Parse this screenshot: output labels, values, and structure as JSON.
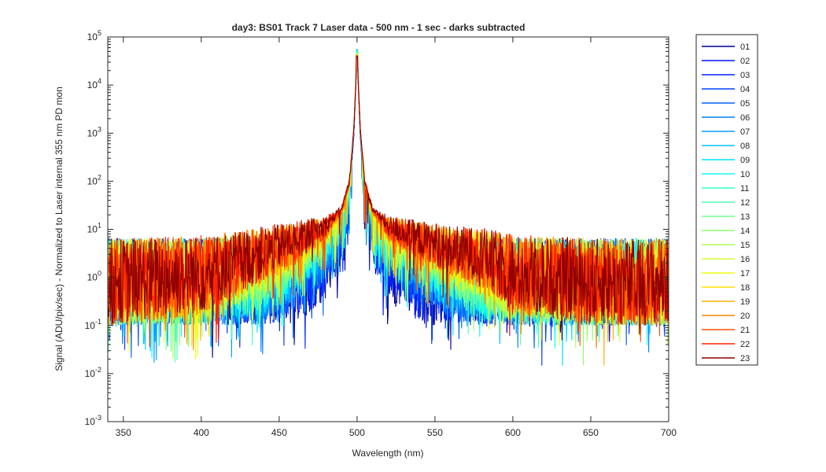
{
  "chart_data": {
    "type": "line",
    "title": "day3: BS01  Track 7 Laser data - 500 nm - 1 sec - darks subtracted",
    "xlabel": "Wavelength (nm)",
    "ylabel": "Signal (ADU/pix/sec) - Normalized to Laser internal 355 nm PD mon",
    "xlim": [
      340,
      700
    ],
    "ylim": [
      0.001,
      100000
    ],
    "yscale": "log",
    "grid": false,
    "legend_position": "outside-right",
    "x_ticks": [
      "350",
      "400",
      "450",
      "500",
      "550",
      "600",
      "650",
      "700"
    ],
    "y_tick_exponents": [
      "-3",
      "-2",
      "-1",
      "0",
      "1",
      "2",
      "3",
      "4",
      "5"
    ],
    "y_tick_base": "10",
    "peak": {
      "x": 500,
      "y_range": [
        40000,
        55000
      ]
    },
    "profile_x": [
      340,
      400,
      440,
      460,
      480,
      490,
      495,
      498,
      500,
      502,
      505,
      510,
      520,
      540,
      560,
      580,
      600,
      650,
      700
    ],
    "series": [
      {
        "name": "01",
        "color": "#00008F",
        "peak": 50000,
        "profile_y": [
          1,
          1,
          1,
          1,
          2,
          6,
          40,
          1000,
          50000,
          1000,
          40,
          6,
          2,
          1,
          1,
          1,
          1,
          1,
          1
        ]
      },
      {
        "name": "02",
        "color": "#0010FF",
        "peak": 50000,
        "profile_y": [
          1,
          1,
          1,
          1,
          2.2,
          6.5,
          42,
          1000,
          50000,
          1000,
          42,
          6.5,
          2.2,
          1.1,
          1,
          1,
          1,
          1,
          1
        ]
      },
      {
        "name": "03",
        "color": "#0020FF",
        "peak": 50000,
        "profile_y": [
          1,
          1,
          1,
          1.1,
          2.5,
          7,
          45,
          1100,
          50000,
          1100,
          45,
          7,
          2.5,
          1.3,
          1,
          1,
          1,
          1,
          1
        ]
      },
      {
        "name": "04",
        "color": "#0040FF",
        "peak": 51000,
        "profile_y": [
          1,
          1,
          1,
          1.2,
          3,
          8,
          48,
          1100,
          51000,
          1100,
          48,
          8,
          3,
          1.5,
          1.1,
          1,
          1,
          1,
          1
        ]
      },
      {
        "name": "05",
        "color": "#0060FF",
        "peak": 51000,
        "profile_y": [
          1,
          1,
          1,
          1.4,
          3.5,
          9,
          50,
          1150,
          51000,
          1150,
          50,
          9,
          3.5,
          1.8,
          1.2,
          1,
          1,
          1,
          1
        ]
      },
      {
        "name": "06",
        "color": "#0080FF",
        "peak": 52000,
        "profile_y": [
          1,
          1,
          1,
          1.6,
          4,
          10,
          52,
          1200,
          52000,
          1200,
          52,
          10,
          4,
          2,
          1.3,
          1,
          1,
          1,
          1
        ]
      },
      {
        "name": "07",
        "color": "#00A0FF",
        "peak": 53000,
        "profile_y": [
          1,
          1,
          1.1,
          1.8,
          4.5,
          11,
          55,
          1200,
          53000,
          1200,
          55,
          11,
          4.5,
          2.3,
          1.4,
          1,
          1,
          1,
          1
        ]
      },
      {
        "name": "08",
        "color": "#00C0FF",
        "peak": 55000,
        "profile_y": [
          1,
          1,
          1.2,
          2,
          5,
          12,
          58,
          1250,
          55000,
          1250,
          58,
          12,
          5,
          2.6,
          1.5,
          1.1,
          1,
          1,
          1
        ]
      },
      {
        "name": "09",
        "color": "#00E0FF",
        "peak": 54000,
        "profile_y": [
          1,
          1,
          1.3,
          2.2,
          5.5,
          13,
          60,
          1250,
          54000,
          1250,
          60,
          13,
          5.5,
          2.9,
          1.6,
          1.1,
          1,
          1,
          1
        ]
      },
      {
        "name": "10",
        "color": "#10FFEF",
        "peak": 52000,
        "profile_y": [
          1,
          1,
          1.4,
          2.5,
          6,
          14,
          62,
          1300,
          52000,
          1300,
          62,
          14,
          6,
          3.2,
          1.8,
          1.2,
          1,
          1,
          1
        ]
      },
      {
        "name": "11",
        "color": "#30FFCF",
        "peak": 50000,
        "profile_y": [
          1,
          1,
          1.5,
          2.8,
          6.5,
          15,
          65,
          1300,
          50000,
          1300,
          65,
          15,
          6.5,
          3.5,
          2,
          1.3,
          1,
          1,
          1
        ]
      },
      {
        "name": "12",
        "color": "#50FFAF",
        "peak": 48000,
        "profile_y": [
          1,
          1,
          1.6,
          3,
          7,
          16,
          68,
          1300,
          48000,
          1300,
          68,
          16,
          7,
          3.8,
          2.2,
          1.4,
          1,
          1,
          1
        ]
      },
      {
        "name": "13",
        "color": "#70FF8F",
        "peak": 47000,
        "profile_y": [
          1,
          1,
          1.8,
          3.3,
          7.5,
          17,
          70,
          1300,
          47000,
          1300,
          70,
          17,
          7.5,
          4.1,
          2.4,
          1.5,
          1,
          1,
          1
        ]
      },
      {
        "name": "14",
        "color": "#90FF6F",
        "peak": 46000,
        "profile_y": [
          1,
          1,
          2,
          3.6,
          8,
          18,
          72,
          1300,
          46000,
          1300,
          72,
          18,
          8,
          4.4,
          2.6,
          1.6,
          1.1,
          1,
          1
        ]
      },
      {
        "name": "15",
        "color": "#AFFF50",
        "peak": 45000,
        "profile_y": [
          1,
          1,
          2.2,
          4,
          8.5,
          19,
          75,
          1300,
          45000,
          1300,
          75,
          19,
          8.5,
          4.7,
          2.8,
          1.8,
          1.1,
          1,
          1
        ]
      },
      {
        "name": "16",
        "color": "#CFFF30",
        "peak": 44000,
        "profile_y": [
          1,
          1.1,
          2.4,
          4.3,
          9,
          20,
          78,
          1300,
          44000,
          1300,
          78,
          20,
          9,
          5,
          3,
          2,
          1.2,
          1,
          1
        ]
      },
      {
        "name": "17",
        "color": "#EFFF10",
        "peak": 43000,
        "profile_y": [
          1,
          1.1,
          2.6,
          4.6,
          9.5,
          21,
          80,
          1300,
          43000,
          1300,
          80,
          21,
          9.5,
          5.3,
          3.2,
          2.2,
          1.3,
          1,
          1
        ]
      },
      {
        "name": "18",
        "color": "#FFE000",
        "peak": 42000,
        "profile_y": [
          1,
          1.2,
          2.8,
          5,
          10,
          22,
          82,
          1300,
          42000,
          1300,
          82,
          22,
          10,
          5.6,
          3.4,
          2.4,
          1.3,
          1,
          1
        ]
      },
      {
        "name": "19",
        "color": "#FFB000",
        "peak": 41000,
        "profile_y": [
          1,
          1.2,
          3,
          5.3,
          10.5,
          23,
          85,
          1300,
          41000,
          1300,
          85,
          23,
          10.5,
          5.9,
          3.6,
          2.6,
          1.4,
          1,
          1
        ]
      },
      {
        "name": "20",
        "color": "#FF8000",
        "peak": 40000,
        "profile_y": [
          1,
          1.3,
          3.2,
          5.6,
          11,
          24,
          88,
          1300,
          40000,
          1300,
          88,
          24,
          11,
          6.2,
          3.8,
          2.8,
          1.4,
          1,
          1
        ]
      },
      {
        "name": "21",
        "color": "#FF5000",
        "peak": 40000,
        "profile_y": [
          1,
          1.3,
          3.4,
          6,
          11.5,
          25,
          90,
          1300,
          40000,
          1300,
          90,
          25,
          11.5,
          6.5,
          4,
          3,
          1.5,
          1,
          1
        ]
      },
      {
        "name": "22",
        "color": "#FF2000",
        "peak": 40000,
        "profile_y": [
          1,
          1.4,
          3.6,
          6.3,
          12,
          26,
          92,
          1300,
          40000,
          1300,
          92,
          26,
          12,
          6.8,
          4.2,
          3.2,
          1.5,
          1,
          1
        ]
      },
      {
        "name": "23",
        "color": "#8F0000",
        "peak": 40000,
        "profile_y": [
          1,
          1.4,
          3.8,
          6.6,
          12.5,
          27,
          95,
          1300,
          40000,
          1300,
          95,
          27,
          12.5,
          7,
          4.4,
          3.4,
          1.5,
          1,
          1
        ]
      }
    ]
  }
}
